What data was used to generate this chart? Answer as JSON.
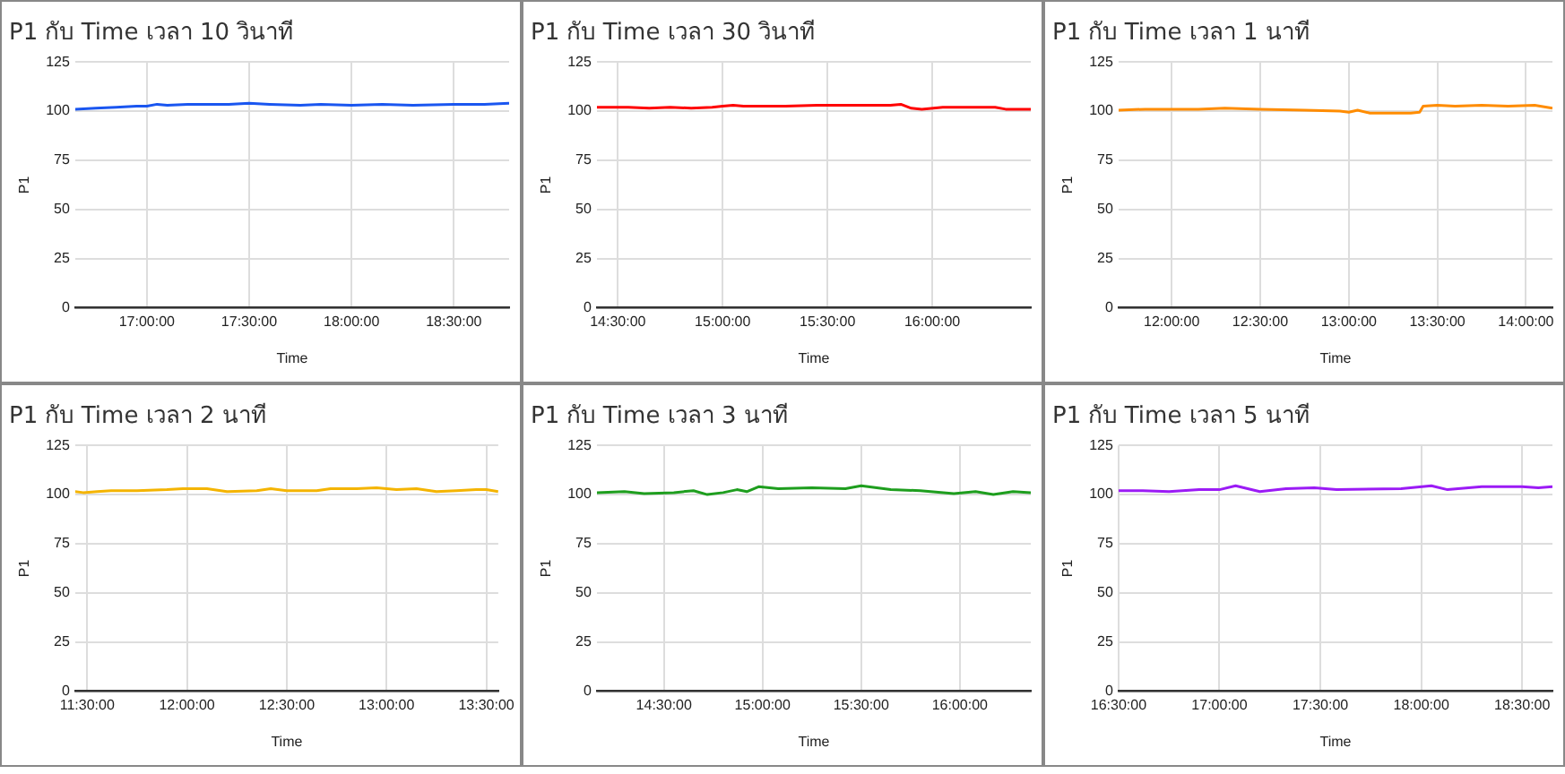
{
  "chart_data": [
    {
      "type": "line",
      "title": "P1 กับ Time เวลา 10 วินาที",
      "xlabel": "Time",
      "ylabel": "P1",
      "color": "#1a56f0",
      "grid": true,
      "xlim": [
        16.65,
        18.77
      ],
      "ylim": [
        0,
        125
      ],
      "yticks": [
        0,
        25,
        50,
        75,
        100,
        125
      ],
      "xticks": [
        {
          "value": 17,
          "label": "17:00:00"
        },
        {
          "value": 17.5,
          "label": "17:30:00"
        },
        {
          "value": 18,
          "label": "18:00:00"
        },
        {
          "value": 18.5,
          "label": "18:30:00"
        }
      ],
      "x": [
        16.65,
        16.75,
        16.85,
        16.95,
        17.0,
        17.05,
        17.1,
        17.2,
        17.4,
        17.5,
        17.6,
        17.75,
        17.85,
        18.0,
        18.15,
        18.3,
        18.5,
        18.65,
        18.77
      ],
      "values": [
        101,
        101.5,
        102,
        102.5,
        102.5,
        103.5,
        103,
        103.5,
        103.5,
        104,
        103.5,
        103,
        103.5,
        103,
        103.5,
        103,
        103.5,
        103.5,
        104
      ]
    },
    {
      "type": "line",
      "title": "P1 กับ Time เวลา 30 วินาที",
      "xlabel": "Time",
      "ylabel": "P1",
      "color": "#ff0000",
      "grid": true,
      "xlim": [
        14.4,
        16.47
      ],
      "ylim": [
        0,
        125
      ],
      "yticks": [
        0,
        25,
        50,
        75,
        100,
        125
      ],
      "xticks": [
        {
          "value": 14.5,
          "label": "14:30:00"
        },
        {
          "value": 15,
          "label": "15:00:00"
        },
        {
          "value": 15.5,
          "label": "15:30:00"
        },
        {
          "value": 16,
          "label": "16:00:00"
        }
      ],
      "x": [
        14.4,
        14.55,
        14.65,
        14.75,
        14.85,
        14.95,
        15.0,
        15.05,
        15.1,
        15.3,
        15.45,
        15.6,
        15.8,
        15.85,
        15.9,
        15.95,
        16.05,
        16.2,
        16.3,
        16.35,
        16.47
      ],
      "values": [
        102,
        102,
        101.5,
        102,
        101.5,
        102,
        102.5,
        103,
        102.5,
        102.5,
        103,
        103,
        103,
        103.5,
        101.5,
        101,
        102,
        102,
        102,
        101,
        101
      ]
    },
    {
      "type": "line",
      "title": "P1 กับ Time เวลา 1 นาที",
      "xlabel": "Time",
      "ylabel": "P1",
      "color": "#ff8c00",
      "grid": true,
      "xlim": [
        11.7,
        14.15
      ],
      "ylim": [
        0,
        125
      ],
      "yticks": [
        0,
        25,
        50,
        75,
        100,
        125
      ],
      "xticks": [
        {
          "value": 12,
          "label": "12:00:00"
        },
        {
          "value": 12.5,
          "label": "12:30:00"
        },
        {
          "value": 13,
          "label": "13:00:00"
        },
        {
          "value": 13.5,
          "label": "13:30:00"
        },
        {
          "value": 14,
          "label": "14:00:00"
        }
      ],
      "x": [
        11.7,
        11.85,
        12.0,
        12.15,
        12.3,
        12.5,
        12.75,
        12.95,
        13.0,
        13.05,
        13.12,
        13.25,
        13.35,
        13.4,
        13.42,
        13.5,
        13.6,
        13.75,
        13.9,
        14.05,
        14.15
      ],
      "values": [
        100.5,
        101,
        101,
        101,
        101.5,
        101,
        100.5,
        100,
        99.5,
        100.5,
        99,
        99,
        99,
        99.5,
        102.5,
        103,
        102.5,
        103,
        102.5,
        103,
        101.5
      ]
    },
    {
      "type": "line",
      "title": "P1 กับ Time เวลา 2 นาที",
      "xlabel": "Time",
      "ylabel": "P1",
      "color": "#f4b400",
      "grid": true,
      "xlim": [
        11.44,
        13.56
      ],
      "ylim": [
        0,
        125
      ],
      "yticks": [
        0,
        25,
        50,
        75,
        100,
        125
      ],
      "xticks": [
        {
          "value": 11.5,
          "label": "11:30:00"
        },
        {
          "value": 12,
          "label": "12:00:00"
        },
        {
          "value": 12.5,
          "label": "12:30:00"
        },
        {
          "value": 13,
          "label": "13:00:00"
        },
        {
          "value": 13.5,
          "label": "13:30:00"
        }
      ],
      "x": [
        11.44,
        11.48,
        11.55,
        11.62,
        11.75,
        11.9,
        11.98,
        12.1,
        12.2,
        12.35,
        12.42,
        12.5,
        12.65,
        12.72,
        12.85,
        12.95,
        13.05,
        13.15,
        13.25,
        13.35,
        13.45,
        13.5,
        13.56
      ],
      "values": [
        101.5,
        101,
        101.5,
        102,
        102,
        102.5,
        103,
        103,
        101.5,
        102,
        103,
        102,
        102,
        103,
        103,
        103.5,
        102.5,
        103,
        101.5,
        102,
        102.5,
        102.5,
        101.5
      ]
    },
    {
      "type": "line",
      "title": "P1 กับ Time เวลา 3 นาที",
      "xlabel": "Time",
      "ylabel": "P1",
      "color": "#1e9e1e",
      "grid": true,
      "xlim": [
        14.16,
        16.36
      ],
      "ylim": [
        0,
        125
      ],
      "yticks": [
        0,
        25,
        50,
        75,
        100,
        125
      ],
      "xticks": [
        {
          "value": 14.5,
          "label": "14:30:00"
        },
        {
          "value": 15,
          "label": "15:00:00"
        },
        {
          "value": 15.5,
          "label": "15:30:00"
        },
        {
          "value": 16,
          "label": "16:00:00"
        }
      ],
      "x": [
        14.16,
        14.3,
        14.4,
        14.55,
        14.65,
        14.72,
        14.8,
        14.87,
        14.92,
        14.98,
        15.08,
        15.25,
        15.42,
        15.5,
        15.65,
        15.8,
        15.97,
        16.08,
        16.17,
        16.27,
        16.36
      ],
      "values": [
        101,
        101.5,
        100.5,
        101,
        102,
        100,
        101,
        102.5,
        101.5,
        104,
        103,
        103.5,
        103,
        104.5,
        102.5,
        102,
        100.5,
        101.5,
        100,
        101.5,
        101
      ]
    },
    {
      "type": "line",
      "title": "P1 กับ Time เวลา 5 นาที",
      "xlabel": "Time",
      "ylabel": "P1",
      "color": "#9b1bf5",
      "grid": true,
      "xlim": [
        16.5,
        18.65
      ],
      "ylim": [
        0,
        125
      ],
      "yticks": [
        0,
        25,
        50,
        75,
        100,
        125
      ],
      "xticks": [
        {
          "value": 16.5,
          "label": "16:30:00"
        },
        {
          "value": 17,
          "label": "17:00:00"
        },
        {
          "value": 17.5,
          "label": "17:30:00"
        },
        {
          "value": 18,
          "label": "18:00:00"
        },
        {
          "value": 18.5,
          "label": "18:30:00"
        }
      ],
      "x": [
        16.5,
        16.62,
        16.75,
        16.9,
        17.0,
        17.08,
        17.2,
        17.33,
        17.47,
        17.58,
        17.9,
        18.05,
        18.13,
        18.3,
        18.5,
        18.58,
        18.65
      ],
      "values": [
        102,
        102,
        101.5,
        102.5,
        102.5,
        104.5,
        101.5,
        103,
        103.5,
        102.5,
        103,
        104.5,
        102.5,
        104,
        104,
        103.5,
        104
      ]
    }
  ]
}
